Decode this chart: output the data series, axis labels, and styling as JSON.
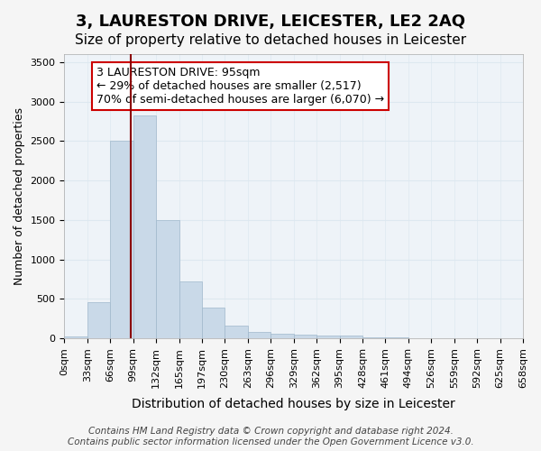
{
  "title": "3, LAURESTON DRIVE, LEICESTER, LE2 2AQ",
  "subtitle": "Size of property relative to detached houses in Leicester",
  "xlabel": "Distribution of detached houses by size in Leicester",
  "ylabel": "Number of detached properties",
  "bar_values": [
    20,
    460,
    2500,
    2820,
    1500,
    720,
    390,
    155,
    80,
    60,
    50,
    40,
    30,
    15,
    10,
    5,
    3,
    2,
    1,
    0
  ],
  "bar_labels": [
    "0sqm",
    "33sqm",
    "66sqm",
    "99sqm",
    "132sqm",
    "165sqm",
    "197sqm",
    "230sqm",
    "263sqm",
    "296sqm",
    "329sqm",
    "362sqm",
    "395sqm",
    "428sqm",
    "461sqm",
    "494sqm",
    "526sqm",
    "559sqm",
    "592sqm",
    "625sqm",
    "658sqm"
  ],
  "bar_color": "#c9d9e8",
  "bar_edge_color": "#a0b8cc",
  "property_line_color": "#8b0000",
  "annotation_text": "3 LAURESTON DRIVE: 95sqm\n← 29% of detached houses are smaller (2,517)\n70% of semi-detached houses are larger (6,070) →",
  "annotation_box_color": "#ffffff",
  "annotation_box_edge_color": "#cc0000",
  "ylim": [
    0,
    3600
  ],
  "yticks": [
    0,
    500,
    1000,
    1500,
    2000,
    2500,
    3000,
    3500
  ],
  "grid_color": "#dde8f0",
  "background_color": "#eef3f8",
  "fig_background_color": "#f5f5f5",
  "footnote": "Contains HM Land Registry data © Crown copyright and database right 2024.\nContains public sector information licensed under the Open Government Licence v3.0.",
  "title_fontsize": 13,
  "subtitle_fontsize": 11,
  "xlabel_fontsize": 10,
  "ylabel_fontsize": 9,
  "tick_fontsize": 8,
  "annotation_fontsize": 9,
  "footnote_fontsize": 7.5
}
